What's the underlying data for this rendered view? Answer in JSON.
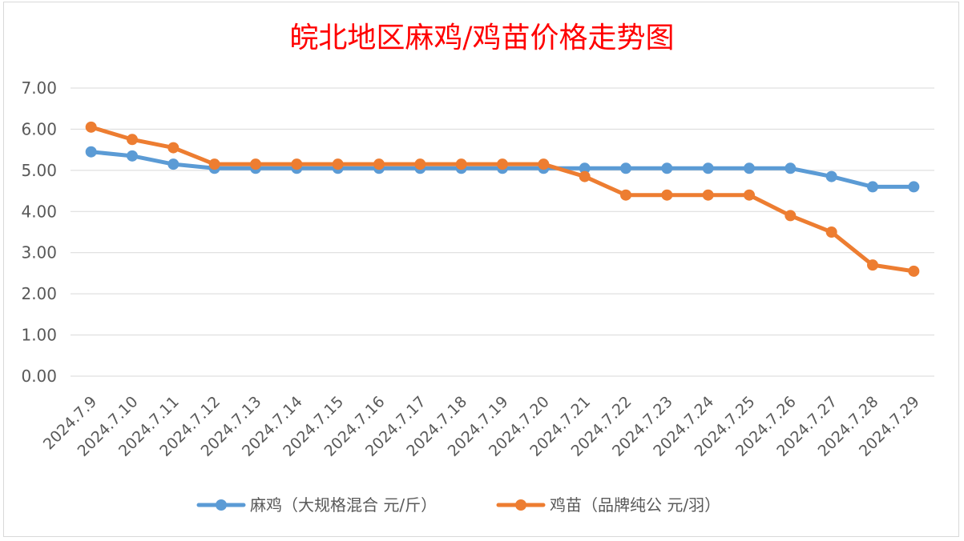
{
  "chart_data": {
    "type": "line",
    "title": "皖北地区麻鸡/鸡苗价格走势图",
    "xlabel": "",
    "ylabel": "",
    "ylim": [
      0,
      7
    ],
    "ytick_step": 1,
    "ytick_labels": [
      "0.00",
      "1.00",
      "2.00",
      "3.00",
      "4.00",
      "5.00",
      "6.00",
      "7.00"
    ],
    "grid": true,
    "legend_position": "bottom",
    "categories": [
      "2024.7.9",
      "2024.7.10",
      "2024.7.11",
      "2024.7.12",
      "2024.7.13",
      "2024.7.14",
      "2024.7.15",
      "2024.7.16",
      "2024.7.17",
      "2024.7.18",
      "2024.7.19",
      "2024.7.20",
      "2024.7.21",
      "2024.7.22",
      "2024.7.23",
      "2024.7.24",
      "2024.7.25",
      "2024.7.26",
      "2024.7.27",
      "2024.7.28",
      "2024.7.29"
    ],
    "series": [
      {
        "name": "麻鸡（大规格混合 元/斤）",
        "color": "#5b9bd5",
        "values": [
          5.45,
          5.35,
          5.15,
          5.05,
          5.05,
          5.05,
          5.05,
          5.05,
          5.05,
          5.05,
          5.05,
          5.05,
          5.05,
          5.05,
          5.05,
          5.05,
          5.05,
          5.05,
          4.85,
          4.6,
          4.6
        ]
      },
      {
        "name": "鸡苗（品牌纯公 元/羽）",
        "color": "#ed7d31",
        "values": [
          6.05,
          5.75,
          5.55,
          5.15,
          5.15,
          5.15,
          5.15,
          5.15,
          5.15,
          5.15,
          5.15,
          5.15,
          4.85,
          4.4,
          4.4,
          4.4,
          4.4,
          3.9,
          3.5,
          2.7,
          2.55
        ]
      }
    ]
  }
}
